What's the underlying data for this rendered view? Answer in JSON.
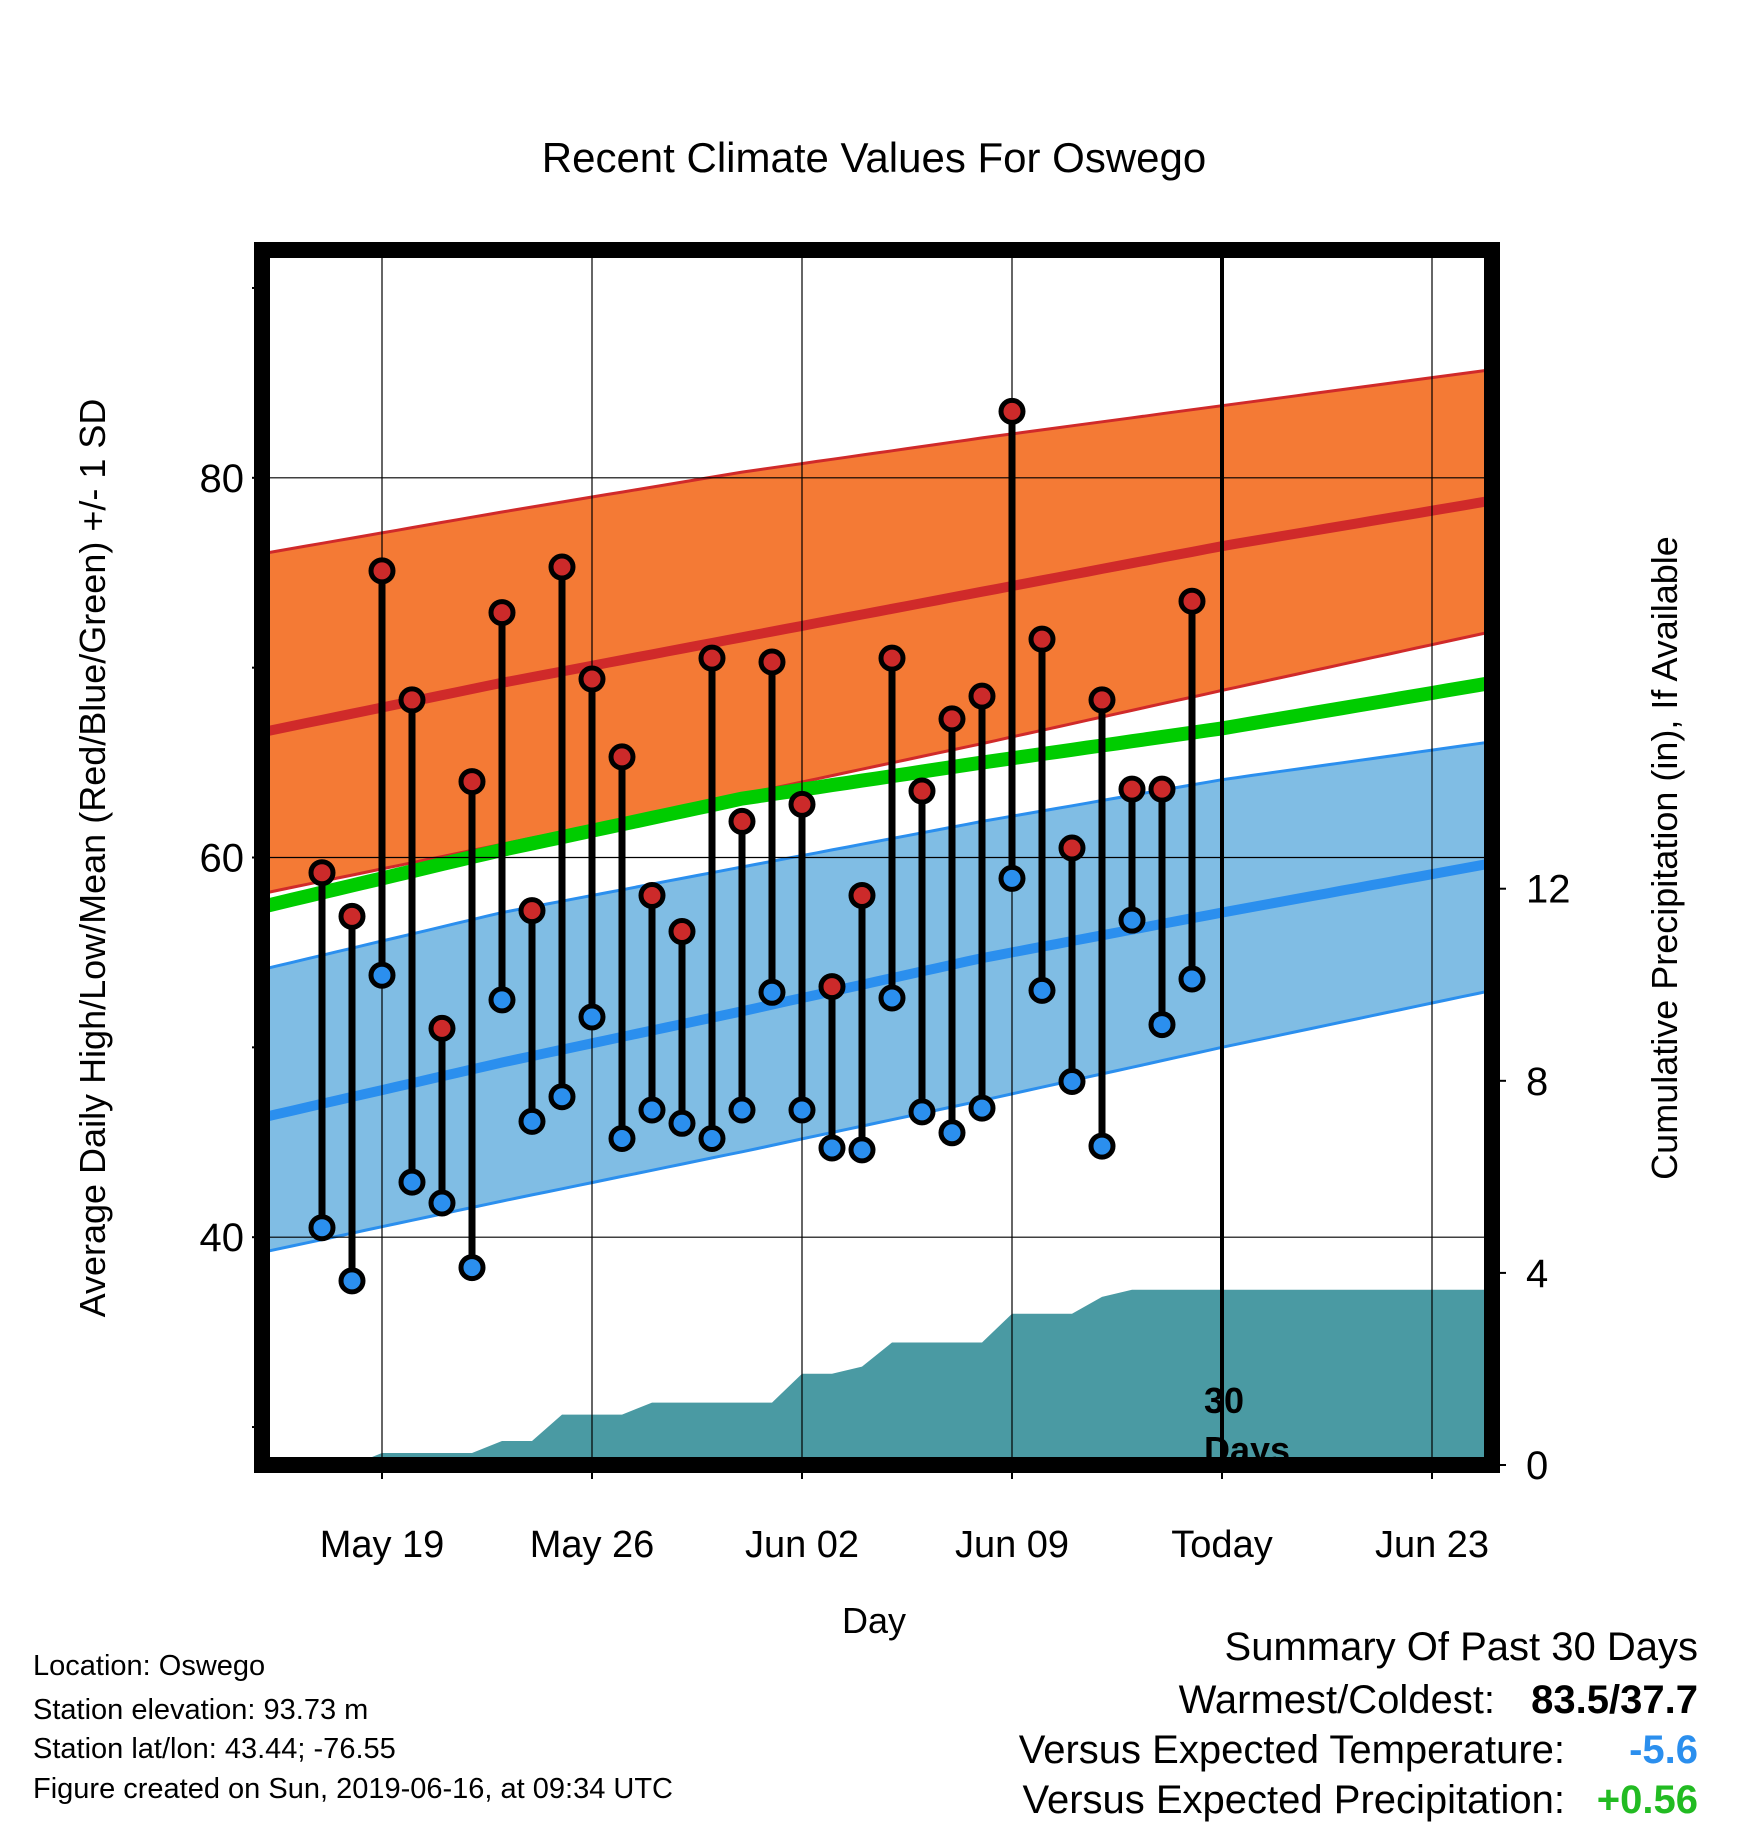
{
  "chart_data": {
    "type": "line",
    "title": "Recent Climate Values For Oswego",
    "xlabel": "Day",
    "ylabel_left": "Average Daily High/Low/Mean (Red/Blue/Green) +/- 1 SD",
    "ylabel_right": "Cumulative Precipitation (in), If Available",
    "x_tick_labels": [
      "May 19",
      "May 26",
      "Jun 02",
      "Jun 09",
      "Today",
      "Jun 23"
    ],
    "y_left_ticks": [
      "40",
      "60",
      "80"
    ],
    "y_left_range": [
      28,
      92
    ],
    "y_right_ticks": [
      "0",
      "4",
      "8",
      "12"
    ],
    "y_right_range": [
      0,
      25.3
    ],
    "x_range_days": [
      -32,
      9
    ],
    "today_marker": {
      "day": 0,
      "label_line1": "30",
      "label_line2": "Days"
    },
    "normals": {
      "days": [
        -32,
        -24,
        -16,
        -8,
        0,
        9
      ],
      "high_mean": [
        66.6,
        69.2,
        71.6,
        74.0,
        76.4,
        78.8
      ],
      "high_upper": [
        76.0,
        78.2,
        80.3,
        82.1,
        83.8,
        85.7
      ],
      "high_lower": [
        58.1,
        60.7,
        63.3,
        66.0,
        68.8,
        71.9
      ],
      "mean": [
        57.4,
        60.4,
        63.1,
        65.0,
        66.8,
        69.2
      ],
      "low_mean": [
        46.3,
        49.2,
        51.9,
        54.7,
        57.1,
        59.7
      ],
      "low_upper": [
        54.1,
        57.1,
        59.5,
        61.9,
        64.1,
        66.1
      ],
      "low_lower": [
        39.2,
        41.9,
        44.5,
        47.2,
        50.0,
        53.0
      ]
    },
    "series": [
      {
        "name": "High",
        "days": [
          -30,
          -29,
          -28,
          -27,
          -26,
          -25,
          -24,
          -23,
          -22,
          -21,
          -20,
          -19,
          -18,
          -17,
          -16,
          -15,
          -14,
          -13,
          -12,
          -11,
          -10,
          -9,
          -8,
          -7,
          -6,
          -5,
          -4,
          -3,
          -2,
          -1
        ],
        "values": [
          59.2,
          56.9,
          75.1,
          68.3,
          51.0,
          64.0,
          72.9,
          57.2,
          75.3,
          69.4,
          65.3,
          58.0,
          56.1,
          70.5,
          61.9,
          70.3,
          62.8,
          53.2,
          58.0,
          70.5,
          63.5,
          67.3,
          68.5,
          83.5,
          71.5,
          60.5,
          68.3,
          63.6,
          63.6,
          73.5
        ]
      },
      {
        "name": "Low",
        "days": [
          -30,
          -29,
          -28,
          -27,
          -26,
          -25,
          -24,
          -23,
          -22,
          -21,
          -20,
          -19,
          -18,
          -17,
          -16,
          -15,
          -14,
          -13,
          -12,
          -11,
          -10,
          -9,
          -8,
          -7,
          -6,
          -5,
          -4,
          -3,
          -2,
          -1
        ],
        "values": [
          40.5,
          37.7,
          53.8,
          42.9,
          41.8,
          38.4,
          52.5,
          46.1,
          47.4,
          51.6,
          45.2,
          46.7,
          46.0,
          45.2,
          46.7,
          52.9,
          46.7,
          44.7,
          44.6,
          52.6,
          46.6,
          45.5,
          46.8,
          58.9,
          53.0,
          48.2,
          44.8,
          56.7,
          51.2,
          53.6
        ]
      }
    ],
    "precipitation": {
      "name": "Cumulative Precipitation",
      "days": [
        -32,
        -30,
        -29,
        -28,
        -27,
        -26,
        -25,
        -24,
        -23,
        -22,
        -21,
        -20,
        -19,
        -18,
        -17,
        -16,
        -15,
        -14,
        -13,
        -12,
        -11,
        -10,
        -9,
        -8,
        -7,
        -6,
        -5,
        -4,
        -3,
        -2,
        -1,
        0,
        9
      ],
      "values": [
        0,
        0,
        0,
        0.25,
        0.25,
        0.25,
        0.25,
        0.5,
        0.5,
        1.05,
        1.05,
        1.05,
        1.3,
        1.3,
        1.3,
        1.3,
        1.3,
        1.9,
        1.9,
        2.05,
        2.55,
        2.55,
        2.55,
        2.55,
        3.15,
        3.15,
        3.15,
        3.5,
        3.65,
        3.65,
        3.65,
        3.65,
        3.65
      ]
    }
  },
  "footer": {
    "location": "Location: Oswego",
    "elevation": "Station elevation: 93.73 m",
    "latlon": "Station lat/lon: 43.44; -76.55",
    "created": "Figure created on Sun, 2019-06-16, at 09:34 UTC"
  },
  "summary": {
    "heading": "Summary Of Past 30 Days",
    "warm_cold_label": "Warmest/Coldest:",
    "warm_cold_value": "83.5/37.7",
    "temp_label": "Versus Expected Temperature:",
    "temp_value": "-5.6",
    "precip_label": "Versus Expected Precipitation:",
    "precip_value": "+0.56"
  },
  "colors": {
    "high_band": "#f47a35",
    "high_line": "#d02a2a",
    "low_band": "#80bde4",
    "low_line": "#2b8fee",
    "mean_line": "#00cc00",
    "precip_fill": "#4a9aa3",
    "high_dot": "#cc2a2a",
    "low_dot": "#2b8fee",
    "temp_anomaly": "#2b8fee",
    "precip_anomaly": "#22bb22"
  }
}
